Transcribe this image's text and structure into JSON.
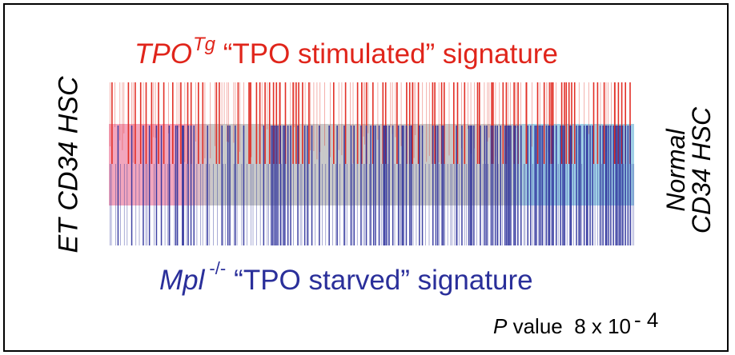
{
  "colors": {
    "stimulated": "#e0251b",
    "starved": "#2a2f9a",
    "et_shade": "#f2a6bd",
    "normal_shade": "#9fd0e6",
    "middle_shade": "#c9c9c9",
    "text": "#000000"
  },
  "top_signature": {
    "gene": "TPO",
    "superscript": "Tg",
    "name": "“TPO stimulated” signature"
  },
  "bottom_signature": {
    "gene": "Mpl",
    "superscript": "-/-",
    "name": "“TPO starved” signature"
  },
  "left_label": "ET CD34 HSC",
  "right_label": {
    "line1": "Normal",
    "line2": "CD34 HSC"
  },
  "p_value": {
    "symbol": "P",
    "text": "value",
    "value": "8 x 10",
    "exponent": "- 4"
  }
}
